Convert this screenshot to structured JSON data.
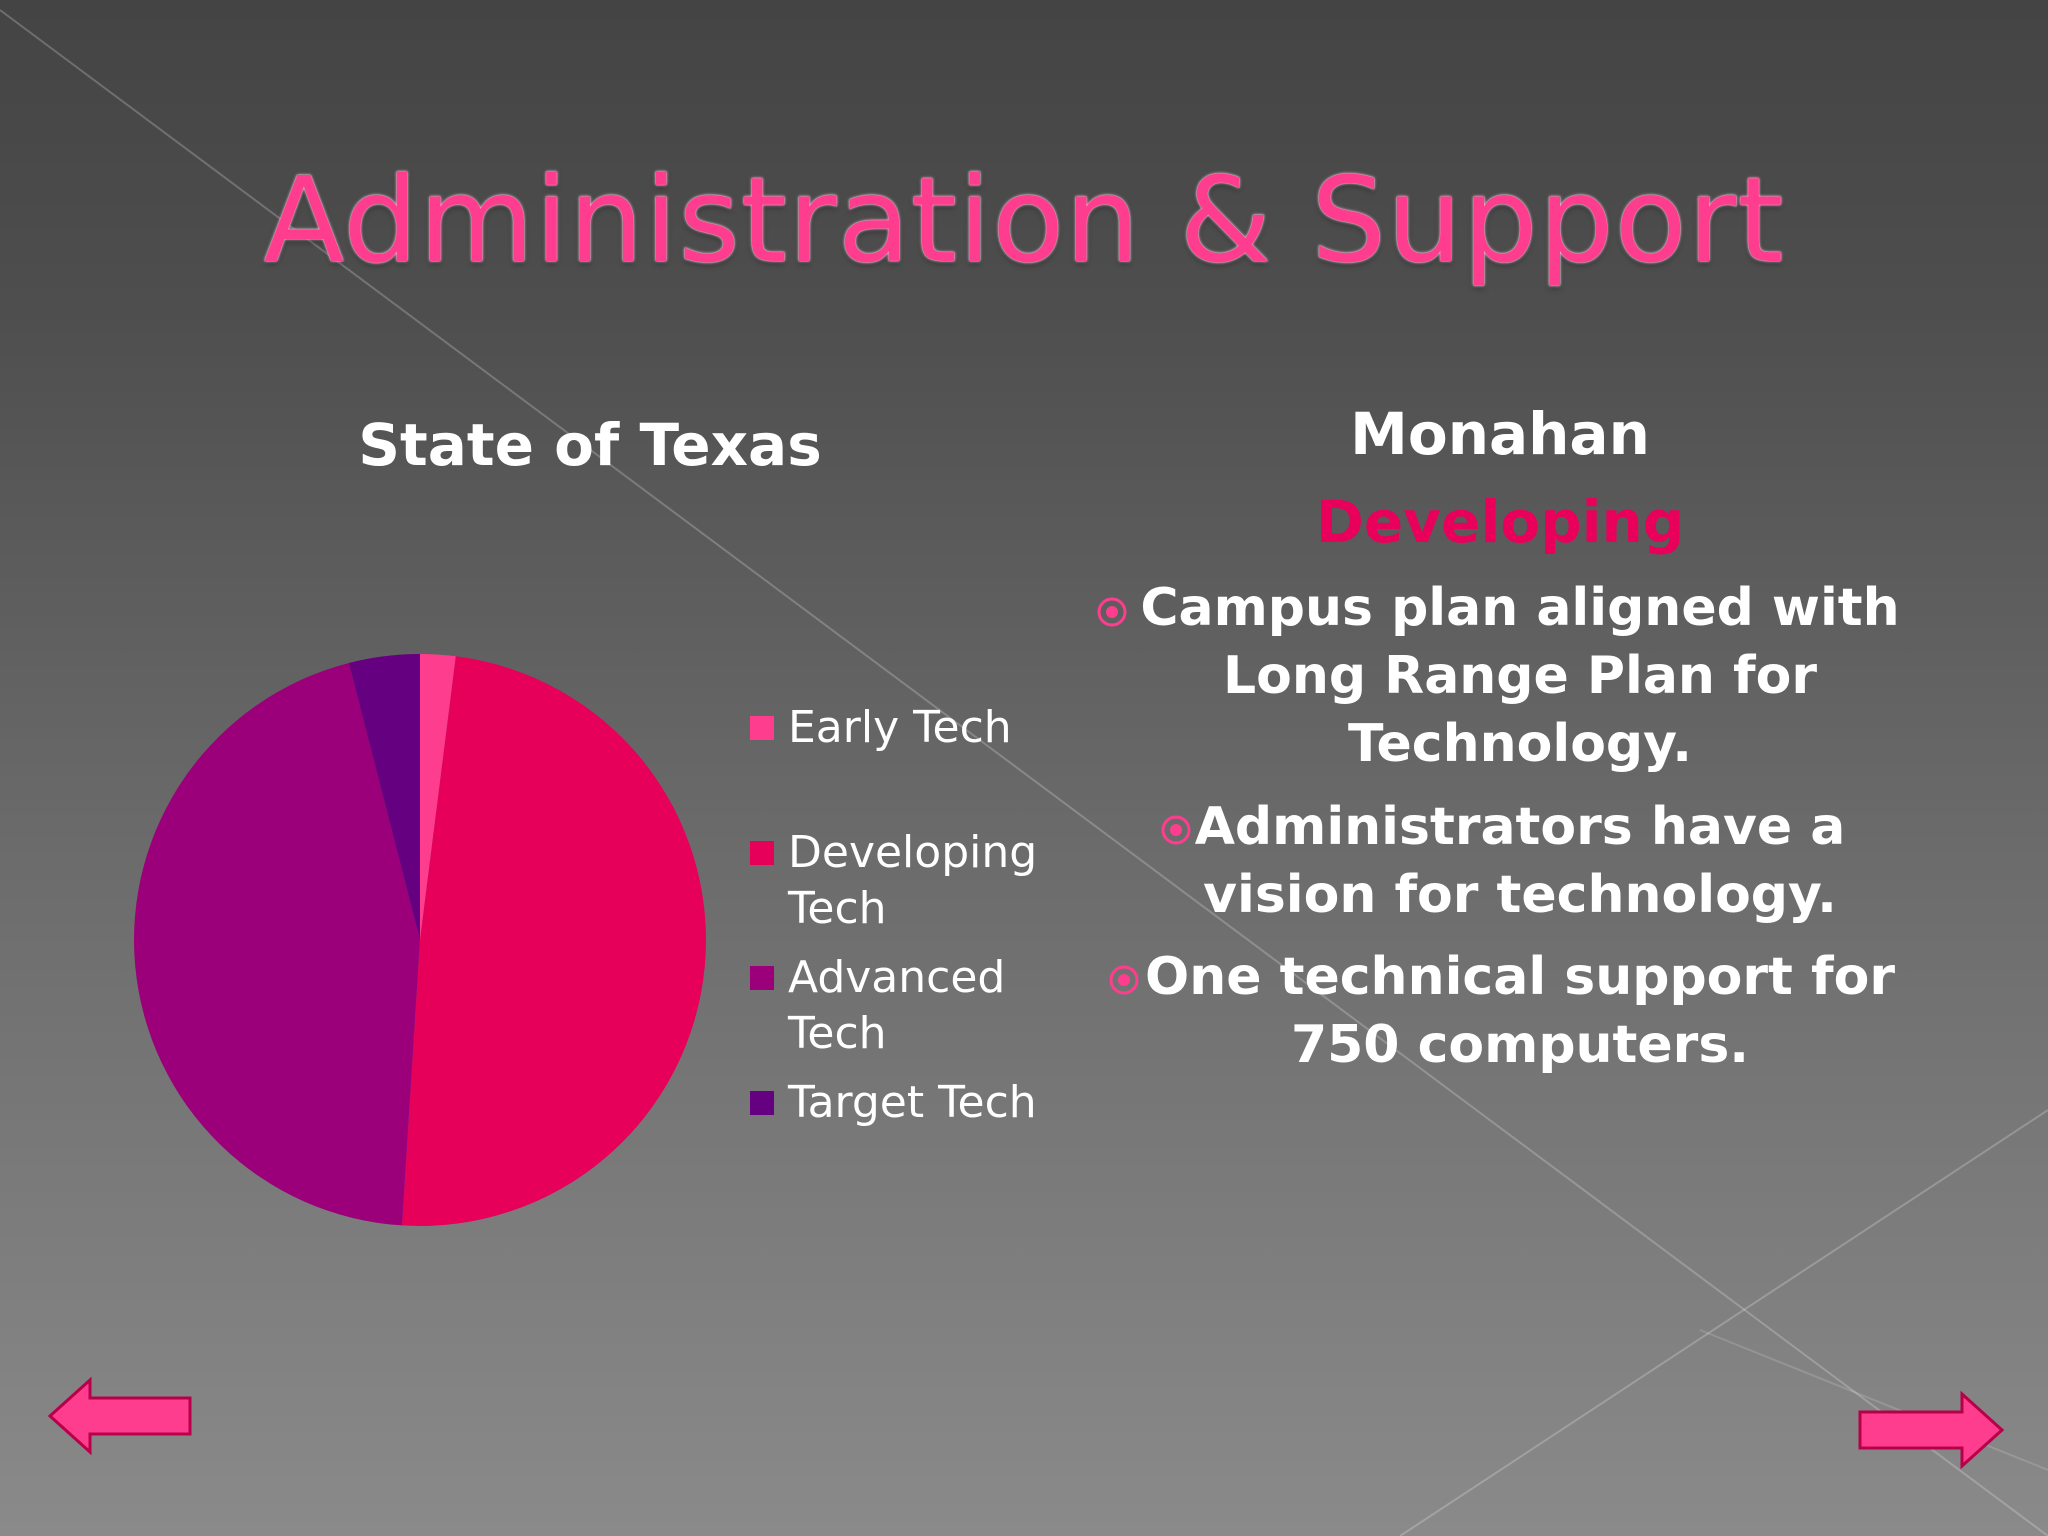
{
  "slide": {
    "title": "Administration & Support"
  },
  "chart_data": {
    "type": "pie",
    "title": "State of Texas",
    "categories": [
      "Early Tech",
      "Developing Tech",
      "Advanced Tech",
      "Target Tech"
    ],
    "values": [
      2,
      49,
      45,
      4
    ],
    "colors": [
      "#ff3d8e",
      "#e6005a",
      "#9b007a",
      "#650080"
    ],
    "legend": "right"
  },
  "campus": {
    "name": "Monahan",
    "level": "Developing",
    "bullets": [
      {
        "lines": [
          "Campus plan aligned with",
          "Long Range Plan for",
          "Technology."
        ]
      },
      {
        "lines": [
          "Administrators have a",
          "vision for technology."
        ]
      },
      {
        "lines": [
          "One technical support for",
          "750 computers."
        ]
      }
    ]
  },
  "nav": {
    "back_icon": "left-arrow-icon",
    "forward_icon": "right-arrow-icon"
  }
}
